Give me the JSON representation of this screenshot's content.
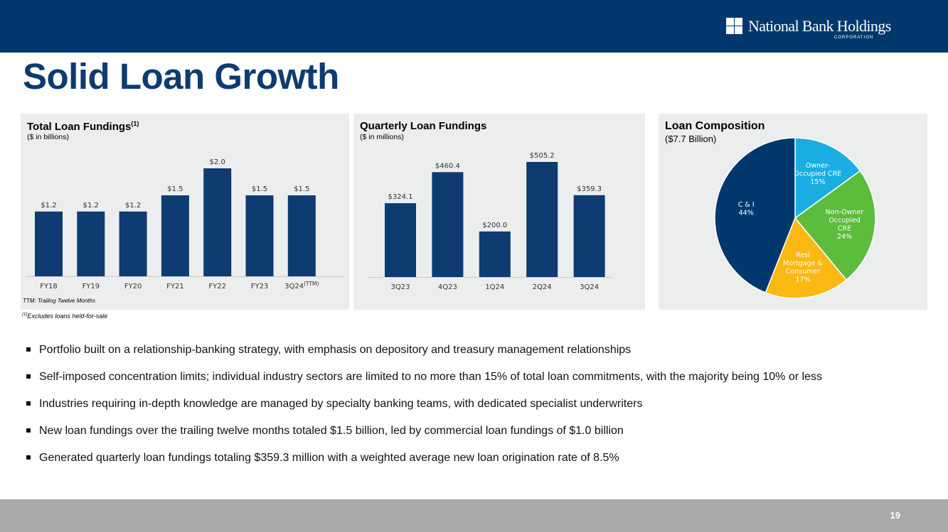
{
  "header": {
    "logo_name": "National Bank Holdings",
    "logo_sub": "CORPORATION",
    "title": "Solid Loan Growth"
  },
  "colors": {
    "navy": "#00386d",
    "bar": "#0d3b72",
    "cyan": "#1aaee3",
    "green": "#5cbc3c",
    "yellow": "#fbb812"
  },
  "panels": {
    "total": {
      "title": "Total Loan Fundings",
      "title_sup": "(1)",
      "subtitle": "($ in billions)",
      "note": "TTM: Trailing Twelve Months"
    },
    "quarterly": {
      "title": "Quarterly Loan Fundings",
      "subtitle": "($ in millions)"
    },
    "composition": {
      "title": "Loan Composition",
      "subtitle": "($7.7 Billion)"
    }
  },
  "chart_data": [
    {
      "type": "bar",
      "title": "Total Loan Fundings",
      "ylabel": "$ in billions",
      "categories": [
        "FY18",
        "FY19",
        "FY20",
        "FY21",
        "FY22",
        "FY23",
        "3Q24"
      ],
      "category_suffix": [
        "",
        "",
        "",
        "",
        "",
        "",
        "(TTM)"
      ],
      "values": [
        1.2,
        1.2,
        1.2,
        1.5,
        2.0,
        1.5,
        1.5
      ],
      "labels": [
        "$1.2",
        "$1.2",
        "$1.2",
        "$1.5",
        "$2.0",
        "$1.5",
        "$1.5"
      ],
      "ylim": [
        0,
        2.0
      ]
    },
    {
      "type": "bar",
      "title": "Quarterly Loan Fundings",
      "ylabel": "$ in millions",
      "categories": [
        "3Q23",
        "4Q23",
        "1Q24",
        "2Q24",
        "3Q24"
      ],
      "values": [
        324.1,
        460.4,
        200.0,
        505.2,
        359.3
      ],
      "labels": [
        "$324.1",
        "$460.4",
        "$200.0",
        "$505.2",
        "$359.3"
      ],
      "ylim": [
        0,
        505.2
      ]
    },
    {
      "type": "pie",
      "title": "Loan Composition",
      "subtitle": "($7.7 Billion)",
      "slices": [
        {
          "name": "Owner-Occupied CRE",
          "lines": [
            "Owner-",
            "Occupied CRE",
            "15%"
          ],
          "value": 15,
          "color": "#1aaee3"
        },
        {
          "name": "Non-Owner Occupied CRE",
          "lines": [
            "Non-Owner",
            "Occupied",
            "CRE",
            "24%"
          ],
          "value": 24,
          "color": "#5cbc3c"
        },
        {
          "name": "Resi Mortgage & Consumer",
          "lines": [
            "Resi",
            "Mortgage &",
            "Consumer",
            "17%"
          ],
          "value": 17,
          "color": "#fbb812"
        },
        {
          "name": "C & I",
          "lines": [
            "C & I",
            "44%"
          ],
          "value": 44,
          "color": "#00386d"
        }
      ]
    }
  ],
  "footnote": {
    "sup": "(1)",
    "text": "Excludes loans held-for-sale"
  },
  "bullets": [
    "Portfolio built on a relationship-banking strategy, with emphasis on depository and treasury management relationships",
    "Self-imposed concentration limits; individual industry sectors are limited to no more than 15% of total loan commitments, with the majority being 10% or less",
    "Industries requiring in-depth knowledge are managed by specialty banking teams, with dedicated specialist underwriters",
    "New loan fundings over the trailing twelve months totaled $1.5 billion, led by commercial loan fundings of $1.0 billion",
    "Generated quarterly loan fundings totaling $359.3 million with a weighted average new loan origination rate of 8.5%"
  ],
  "footer": {
    "page_number": "19"
  }
}
